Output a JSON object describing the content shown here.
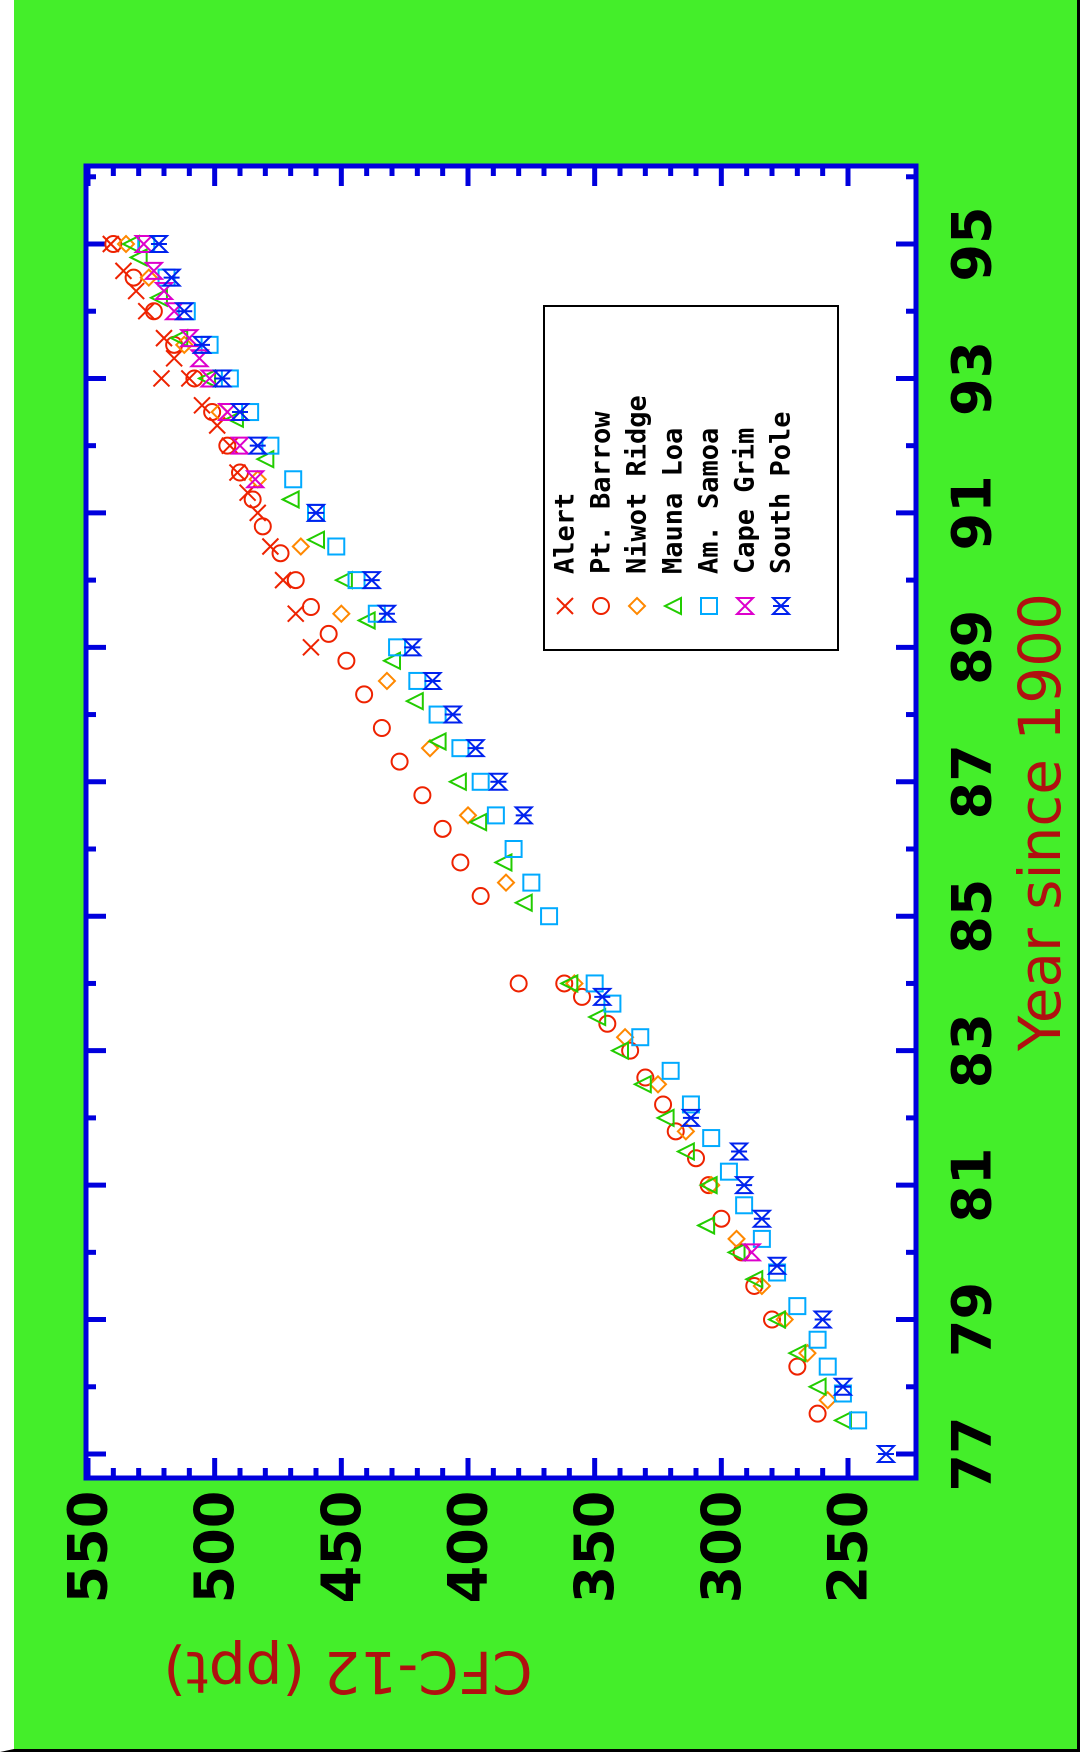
{
  "chart_data": {
    "type": "scatter",
    "orientation": "rotated 90 degrees counter-clockwise",
    "title": "",
    "xlabel": "Year since 1900",
    "ylabel": "CFC-12 (ppt)",
    "xlim": [
      77,
      96
    ],
    "ylim": [
      235,
      550
    ],
    "x_ticks": [
      "77",
      "79",
      "81",
      "83",
      "85",
      "87",
      "89",
      "91",
      "93",
      "95"
    ],
    "y_ticks": [
      "250",
      "300",
      "350",
      "400",
      "450",
      "500",
      "550"
    ],
    "grid": false,
    "legend_position": "upper-left of plot area",
    "series": [
      {
        "name": "Alert",
        "marker": "x",
        "color": "#ee2200",
        "x": [
          89.0,
          89.5,
          90.0,
          90.5,
          91.0,
          91.3,
          91.6,
          92.0,
          92.3,
          92.6,
          93.0,
          93.0,
          93.3,
          93.6,
          94.0,
          94.3,
          94.6,
          95.0
        ],
        "y": [
          462,
          468,
          473,
          478,
          483,
          487,
          491,
          494,
          499,
          505,
          510,
          521,
          516,
          520,
          527,
          531,
          536,
          541
        ]
      },
      {
        "name": "Pt. Barrow",
        "marker": "circle",
        "color": "#ee2200",
        "x": [
          77.6,
          78.3,
          79.0,
          79.5,
          80.0,
          80.5,
          81.0,
          81.4,
          81.8,
          82.2,
          82.6,
          83.0,
          83.4,
          83.8,
          84.0,
          84.0,
          85.3,
          85.8,
          86.3,
          86.8,
          87.3,
          87.8,
          88.3,
          88.8,
          89.2,
          89.6,
          90.0,
          90.4,
          90.8,
          91.2,
          91.6,
          92.0,
          92.5,
          93.0,
          93.5,
          94.0,
          94.5,
          95.0
        ],
        "y": [
          262,
          270,
          280,
          287,
          292,
          300,
          305,
          310,
          318,
          323,
          330,
          336,
          345,
          355,
          362,
          380,
          395,
          403,
          410,
          418,
          427,
          434,
          441,
          448,
          455,
          462,
          468,
          474,
          481,
          485,
          490,
          495,
          501,
          508,
          516,
          524,
          532,
          540
        ]
      },
      {
        "name": "Niwot Ridge",
        "marker": "diamond",
        "color": "#ff8800",
        "x": [
          77.8,
          78.5,
          79.0,
          79.5,
          80.2,
          81.0,
          81.8,
          82.5,
          83.2,
          84.0,
          85.5,
          86.5,
          87.5,
          88.5,
          89.5,
          90.5,
          91.5,
          92.5,
          93.5,
          94.5,
          95.0
        ],
        "y": [
          258,
          266,
          275,
          284,
          294,
          304,
          314,
          325,
          338,
          358,
          385,
          400,
          415,
          432,
          450,
          466,
          483,
          498,
          512,
          526,
          535
        ]
      },
      {
        "name": "Mauna Loa",
        "marker": "triangle",
        "color": "#22cc00",
        "x": [
          77.5,
          78.0,
          78.5,
          79.0,
          79.6,
          80.0,
          80.4,
          81.0,
          81.5,
          82.0,
          82.5,
          83.0,
          83.5,
          84.0,
          85.2,
          85.8,
          86.4,
          87.0,
          87.6,
          88.2,
          88.8,
          89.4,
          90.0,
          90.6,
          91.2,
          91.8,
          92.4,
          93.0,
          93.6,
          94.2,
          94.8,
          95.0
        ],
        "y": [
          252,
          262,
          270,
          278,
          287,
          294,
          306,
          305,
          314,
          322,
          331,
          340,
          349,
          360,
          378,
          386,
          396,
          404,
          412,
          421,
          430,
          440,
          449,
          460,
          470,
          480,
          492,
          503,
          514,
          522,
          530,
          533
        ]
      },
      {
        "name": "Am. Samoa",
        "marker": "square",
        "color": "#00aaff",
        "x": [
          77.5,
          77.9,
          78.3,
          78.7,
          79.2,
          79.7,
          80.2,
          80.7,
          81.2,
          81.7,
          82.2,
          82.7,
          83.2,
          83.7,
          84.0,
          85.0,
          85.5,
          86.0,
          86.5,
          87.0,
          87.5,
          88.0,
          88.5,
          89.0,
          89.5,
          90.0,
          90.5,
          91.0,
          91.5,
          92.0,
          92.5,
          93.0,
          93.5,
          94.0,
          94.5,
          95.0
        ],
        "y": [
          246,
          252,
          258,
          262,
          270,
          278,
          284,
          291,
          297,
          304,
          312,
          320,
          332,
          343,
          350,
          368,
          375,
          382,
          389,
          395,
          403,
          412,
          420,
          428,
          436,
          444,
          452,
          460,
          469,
          478,
          486,
          494,
          502,
          511,
          519,
          527
        ]
      },
      {
        "name": "Cape Grim",
        "marker": "hourglass",
        "color": "#dd00cc",
        "x": [
          80.0,
          91.5,
          92.0,
          92.5,
          93.0,
          93.3,
          93.6,
          94.0,
          94.3,
          94.6,
          95.0
        ],
        "y": [
          288,
          484,
          490,
          495,
          502,
          506,
          510,
          516,
          520,
          524,
          528
        ]
      },
      {
        "name": "South Pole",
        "marker": "bowtie",
        "color": "#0022ee",
        "x": [
          77.0,
          78.0,
          79.0,
          79.8,
          80.5,
          81.0,
          81.5,
          82.0,
          83.8,
          86.5,
          87.0,
          87.5,
          88.0,
          88.5,
          89.0,
          89.5,
          90.0,
          91.0,
          92.0,
          92.5,
          93.0,
          93.5,
          94.0,
          94.5,
          95.0
        ],
        "y": [
          235,
          252,
          260,
          278,
          284,
          291,
          293,
          312,
          347,
          378,
          388,
          397,
          406,
          414,
          422,
          432,
          438,
          460,
          483,
          490,
          497,
          505,
          512,
          517,
          522
        ]
      }
    ]
  }
}
